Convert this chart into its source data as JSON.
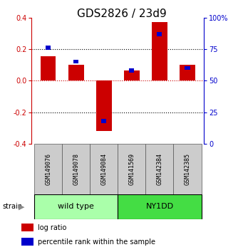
{
  "title": "GDS2826 / 23d9",
  "samples": [
    "GSM149076",
    "GSM149078",
    "GSM149084",
    "GSM141569",
    "GSM142384",
    "GSM142385"
  ],
  "log_ratio": [
    0.155,
    0.1,
    -0.32,
    0.065,
    0.37,
    0.1
  ],
  "percentile_rank": [
    76,
    65,
    18,
    58,
    87,
    60
  ],
  "ylim_left": [
    -0.4,
    0.4
  ],
  "ylim_right": [
    0,
    100
  ],
  "right_yticks": [
    0,
    25,
    50,
    75,
    100
  ],
  "right_yticklabels": [
    "0",
    "25",
    "50",
    "75",
    "100%"
  ],
  "left_yticks": [
    -0.4,
    -0.2,
    0.0,
    0.2,
    0.4
  ],
  "bar_color_red": "#cc0000",
  "bar_color_blue": "#0000cc",
  "strain_groups": [
    {
      "label": "wild type",
      "indices": [
        0,
        1,
        2
      ],
      "color": "#aaffaa",
      "border_color": "#000000"
    },
    {
      "label": "NY1DD",
      "indices": [
        3,
        4,
        5
      ],
      "color": "#44dd44",
      "border_color": "#000000"
    }
  ],
  "strain_label": "strain",
  "legend_items": [
    {
      "color": "#cc0000",
      "label": "log ratio"
    },
    {
      "color": "#0000cc",
      "label": "percentile rank within the sample"
    }
  ],
  "bg_color": "#ffffff",
  "title_fontsize": 11,
  "tick_fontsize": 7,
  "label_fontsize": 6,
  "bar_width": 0.55,
  "blue_bar_width": 0.18,
  "blue_bar_height": 0.025
}
